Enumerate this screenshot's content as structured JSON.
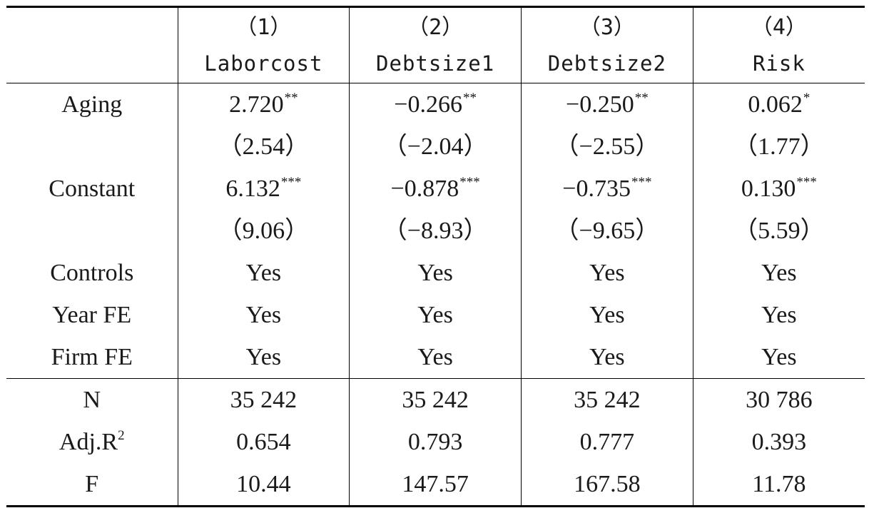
{
  "table": {
    "header_numbers": [
      "（1）",
      "（2）",
      "（3）",
      "（4）"
    ],
    "header_names": [
      "Laborcost",
      "Debtsize1",
      "Debtsize2",
      "Risk"
    ],
    "rows": {
      "aging": {
        "label": "Aging",
        "values": [
          "2.720",
          "−0.266",
          "−0.250",
          "0.062"
        ],
        "stars": [
          "**",
          "**",
          "**",
          "*"
        ]
      },
      "aging_t": {
        "values": [
          "（2.54）",
          "（−2.04）",
          "（−2.55）",
          "（1.77）"
        ]
      },
      "constant": {
        "label": "Constant",
        "values": [
          "6.132",
          "−0.878",
          "−0.735",
          "0.130"
        ],
        "stars": [
          "***",
          "***",
          "***",
          "***"
        ]
      },
      "constant_t": {
        "values": [
          "（9.06）",
          "（−8.93）",
          "（−9.65）",
          "（5.59）"
        ]
      },
      "controls": {
        "label": "Controls",
        "values": [
          "Yes",
          "Yes",
          "Yes",
          "Yes"
        ]
      },
      "year_fe": {
        "label": "Year FE",
        "values": [
          "Yes",
          "Yes",
          "Yes",
          "Yes"
        ]
      },
      "firm_fe": {
        "label": "Firm FE",
        "values": [
          "Yes",
          "Yes",
          "Yes",
          "Yes"
        ]
      },
      "n": {
        "label": "N",
        "values": [
          "35 242",
          "35 242",
          "35 242",
          "30 786"
        ]
      },
      "adj_r2": {
        "label": "Adj.R",
        "label_sup": "2",
        "values": [
          "0.654",
          "0.793",
          "0.777",
          "0.393"
        ]
      },
      "f": {
        "label": "F",
        "values": [
          "10.44",
          "147.57",
          "167.58",
          "11.78"
        ]
      }
    }
  }
}
